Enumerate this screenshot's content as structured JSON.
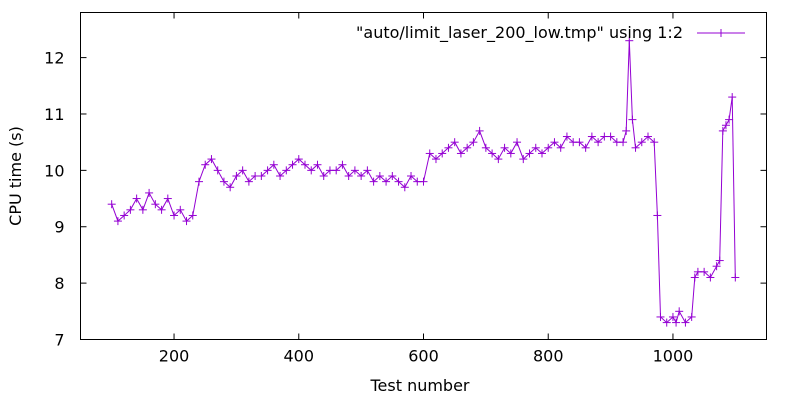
{
  "chart_data": {
    "type": "line",
    "title": "",
    "xlabel": "Test number",
    "ylabel": "CPU time (s)",
    "xlim": [
      50,
      1150
    ],
    "ylim": [
      7,
      12.8
    ],
    "x_ticks": [
      200,
      400,
      600,
      800,
      1000
    ],
    "y_ticks": [
      7,
      8,
      9,
      10,
      11,
      12
    ],
    "grid": false,
    "legend_position": "top-right",
    "point_marker": "plus",
    "series": [
      {
        "name": "\"auto/limit_laser_200_low.tmp\" using 1:2",
        "color": "#9400d3",
        "x": [
          100,
          110,
          120,
          130,
          140,
          150,
          160,
          170,
          180,
          190,
          200,
          210,
          220,
          230,
          240,
          250,
          260,
          270,
          280,
          290,
          300,
          310,
          320,
          330,
          340,
          350,
          360,
          370,
          380,
          390,
          400,
          410,
          420,
          430,
          440,
          450,
          460,
          470,
          480,
          490,
          500,
          510,
          520,
          530,
          540,
          550,
          560,
          570,
          580,
          590,
          600,
          610,
          620,
          630,
          640,
          650,
          660,
          670,
          680,
          690,
          700,
          710,
          720,
          730,
          740,
          750,
          760,
          770,
          780,
          790,
          800,
          810,
          820,
          830,
          840,
          850,
          860,
          870,
          880,
          890,
          900,
          910,
          920,
          925,
          930,
          935,
          940,
          950,
          960,
          970,
          975,
          980,
          990,
          1000,
          1005,
          1010,
          1020,
          1030,
          1035,
          1040,
          1050,
          1060,
          1070,
          1075,
          1080,
          1085,
          1090,
          1095,
          1100
        ],
        "values": [
          9.4,
          9.1,
          9.2,
          9.3,
          9.5,
          9.3,
          9.6,
          9.4,
          9.3,
          9.5,
          9.2,
          9.3,
          9.1,
          9.2,
          9.8,
          10.1,
          10.2,
          10.0,
          9.8,
          9.7,
          9.9,
          10.0,
          9.8,
          9.9,
          9.9,
          10.0,
          10.1,
          9.9,
          10.0,
          10.1,
          10.2,
          10.1,
          10.0,
          10.1,
          9.9,
          10.0,
          10.0,
          10.1,
          9.9,
          10.0,
          9.9,
          10.0,
          9.8,
          9.9,
          9.8,
          9.9,
          9.8,
          9.7,
          9.9,
          9.8,
          9.8,
          10.3,
          10.2,
          10.3,
          10.4,
          10.5,
          10.3,
          10.4,
          10.5,
          10.7,
          10.4,
          10.3,
          10.2,
          10.4,
          10.3,
          10.5,
          10.2,
          10.3,
          10.4,
          10.3,
          10.4,
          10.5,
          10.4,
          10.6,
          10.5,
          10.5,
          10.4,
          10.6,
          10.5,
          10.6,
          10.6,
          10.5,
          10.5,
          10.7,
          12.3,
          10.9,
          10.4,
          10.5,
          10.6,
          10.5,
          9.2,
          7.4,
          7.3,
          7.4,
          7.3,
          7.5,
          7.3,
          7.4,
          8.1,
          8.2,
          8.2,
          8.1,
          8.3,
          8.4,
          10.7,
          10.8,
          10.9,
          11.3,
          8.1
        ]
      }
    ]
  }
}
